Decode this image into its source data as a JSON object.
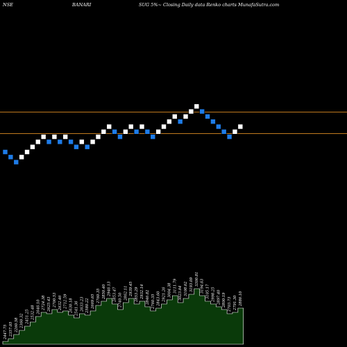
{
  "header": {
    "exchange": "NSE",
    "symbol": "BANARI",
    "title": "SUG 5%~  Closing Daily data  Renko  charts MunafaSutra.com"
  },
  "colors": {
    "background": "#000000",
    "up_brick": "#ffffff",
    "down_brick": "#1e7ce8",
    "brick_border": "#000000",
    "resistance_line": "#c07a1e",
    "volume_fill": "#0a3a0a",
    "volume_outline": "#ffffff"
  },
  "chart_data": {
    "type": "renko",
    "box_size_pct": 5,
    "resistance_levels": [
      "upper",
      "lower"
    ],
    "bricks": [
      {
        "level": 0,
        "dir": "down"
      },
      {
        "level": -1,
        "dir": "down"
      },
      {
        "level": -2,
        "dir": "down"
      },
      {
        "level": -1,
        "dir": "up"
      },
      {
        "level": 0,
        "dir": "up"
      },
      {
        "level": 1,
        "dir": "up"
      },
      {
        "level": 2,
        "dir": "up"
      },
      {
        "level": 3,
        "dir": "up"
      },
      {
        "level": 2,
        "dir": "down"
      },
      {
        "level": 3,
        "dir": "up"
      },
      {
        "level": 2,
        "dir": "down"
      },
      {
        "level": 3,
        "dir": "up"
      },
      {
        "level": 2,
        "dir": "down"
      },
      {
        "level": 1,
        "dir": "down"
      },
      {
        "level": 2,
        "dir": "up"
      },
      {
        "level": 1,
        "dir": "down"
      },
      {
        "level": 2,
        "dir": "up"
      },
      {
        "level": 3,
        "dir": "up"
      },
      {
        "level": 4,
        "dir": "up"
      },
      {
        "level": 5,
        "dir": "up"
      },
      {
        "level": 4,
        "dir": "down"
      },
      {
        "level": 3,
        "dir": "down"
      },
      {
        "level": 4,
        "dir": "up"
      },
      {
        "level": 5,
        "dir": "up"
      },
      {
        "level": 4,
        "dir": "down"
      },
      {
        "level": 5,
        "dir": "up"
      },
      {
        "level": 4,
        "dir": "down"
      },
      {
        "level": 3,
        "dir": "down"
      },
      {
        "level": 4,
        "dir": "up"
      },
      {
        "level": 5,
        "dir": "up"
      },
      {
        "level": 6,
        "dir": "up"
      },
      {
        "level": 7,
        "dir": "up"
      },
      {
        "level": 6,
        "dir": "down"
      },
      {
        "level": 7,
        "dir": "up"
      },
      {
        "level": 8,
        "dir": "up"
      },
      {
        "level": 9,
        "dir": "up"
      },
      {
        "level": 8,
        "dir": "down"
      },
      {
        "level": 7,
        "dir": "down"
      },
      {
        "level": 6,
        "dir": "down"
      },
      {
        "level": 5,
        "dir": "down"
      },
      {
        "level": 4,
        "dir": "down"
      },
      {
        "level": 3,
        "dir": "down"
      },
      {
        "level": 4,
        "dir": "up"
      },
      {
        "level": 5,
        "dir": "up"
      }
    ],
    "volume": {
      "heights": [
        4,
        8,
        14,
        20,
        26,
        32,
        40,
        46,
        44,
        50,
        46,
        48,
        42,
        38,
        44,
        42,
        48,
        56,
        62,
        66,
        58,
        50,
        60,
        66,
        58,
        62,
        54,
        48,
        52,
        58,
        64,
        70,
        60,
        66,
        72,
        80,
        70,
        62,
        58,
        54,
        50,
        44,
        46,
        52
      ],
      "labels": [
        "2447.75",
        "2357.05",
        "2260.58",
        "2360.32",
        "2451.25",
        "2532.48",
        "2646.10",
        "2724.38",
        "2625.43",
        "2700.53",
        "2632.46",
        "2712.59",
        "2630.18",
        "2541.36",
        "2633.23",
        "2580.22",
        "2669.65",
        "2760.35",
        "2850.40",
        "2946.13",
        "2853.47",
        "2740.50",
        "2862.11",
        "2939.45",
        "2853.29",
        "2932.14",
        "2846.82",
        "2760.35",
        "2843.60",
        "2921.26",
        "3004.38",
        "3111.79",
        "3023.64",
        "3108.62",
        "3193.09",
        "3300.81",
        "3194.63",
        "3105.17",
        "2998.25",
        "2897.40",
        "2800.19",
        "2703.73",
        "2791.30",
        "2886.10"
      ]
    }
  }
}
